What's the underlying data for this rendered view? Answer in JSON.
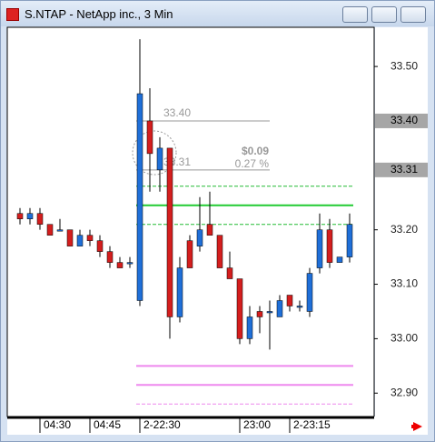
{
  "title": "S.NTAP - NetApp inc., 3 Min",
  "chart_data": {
    "type": "candlestick",
    "categories": [
      null,
      null,
      "04:30",
      null,
      null,
      null,
      null,
      "04:45",
      null,
      null,
      null,
      null,
      "2-22:30",
      null,
      null,
      null,
      null,
      null,
      null,
      null,
      null,
      null,
      "23:00",
      null,
      null,
      null,
      null,
      "2-23:15",
      null,
      null,
      null,
      null,
      null,
      null
    ],
    "open": [
      33.23,
      33.22,
      33.23,
      33.21,
      33.2,
      33.2,
      33.17,
      33.19,
      33.18,
      33.16,
      33.14,
      33.14,
      33.07,
      33.4,
      33.31,
      33.35,
      33.04,
      33.18,
      33.17,
      33.21,
      33.19,
      33.13,
      33.11,
      33.0,
      33.05,
      33.05,
      33.04,
      33.08,
      33.06,
      33.05,
      33.13,
      33.2,
      33.14,
      33.15
    ],
    "high": [
      33.24,
      33.24,
      33.24,
      33.21,
      33.22,
      33.2,
      33.2,
      33.2,
      33.19,
      33.17,
      33.15,
      33.15,
      33.55,
      33.46,
      33.37,
      33.35,
      33.15,
      33.19,
      33.26,
      33.27,
      33.19,
      33.16,
      33.11,
      33.06,
      33.06,
      33.07,
      33.08,
      33.08,
      33.07,
      33.13,
      33.23,
      33.22,
      33.15,
      33.23
    ],
    "low": [
      33.21,
      33.21,
      33.2,
      33.19,
      33.2,
      33.17,
      33.17,
      33.17,
      33.15,
      33.13,
      33.13,
      33.13,
      33.06,
      33.27,
      33.27,
      33.0,
      33.03,
      33.13,
      33.16,
      33.19,
      33.13,
      33.11,
      32.99,
      32.99,
      33.01,
      32.98,
      33.04,
      33.05,
      33.05,
      33.04,
      33.12,
      33.13,
      33.14,
      33.14
    ],
    "close": [
      33.22,
      33.23,
      33.21,
      33.19,
      33.2,
      33.17,
      33.19,
      33.18,
      33.16,
      33.14,
      33.13,
      33.14,
      33.45,
      33.34,
      33.35,
      33.04,
      33.13,
      33.13,
      33.2,
      33.19,
      33.13,
      33.11,
      33.0,
      33.04,
      33.04,
      33.05,
      33.07,
      33.06,
      33.06,
      33.12,
      33.2,
      33.14,
      33.15,
      33.21
    ],
    "up_color": "#1f6fd8",
    "down_color": "#d41e1e",
    "ylim": [
      32.857,
      33.572
    ],
    "yticks": [
      {
        "value": 32.9,
        "label": "32.90"
      },
      {
        "value": 33.0,
        "label": "33.00"
      },
      {
        "value": 33.1,
        "label": "33.10"
      },
      {
        "value": 33.2,
        "label": "33.20"
      },
      {
        "value": 33.5,
        "label": "33.50"
      }
    ],
    "marked_levels": [
      {
        "value": 33.4,
        "label": "33.40"
      },
      {
        "value": 33.31,
        "label": "33.31"
      }
    ],
    "lines": [
      {
        "value": 33.28,
        "color": "#22bb33",
        "style": "dashed"
      },
      {
        "value": 33.245,
        "color": "#22cc33",
        "style": "solid"
      },
      {
        "value": 33.21,
        "color": "#22bb33",
        "style": "dashed"
      },
      {
        "value": 32.95,
        "color": "#ee88ee",
        "style": "solid"
      },
      {
        "value": 32.915,
        "color": "#ee88ee",
        "style": "solid"
      },
      {
        "value": 32.88,
        "color": "#ee88ee",
        "style": "dashed"
      }
    ],
    "measure": {
      "from": {
        "value": 33.4,
        "label": "33.40"
      },
      "to": {
        "value": 33.31,
        "label": "33.31"
      },
      "change": "$0.09",
      "percent": "0.27 %"
    }
  }
}
